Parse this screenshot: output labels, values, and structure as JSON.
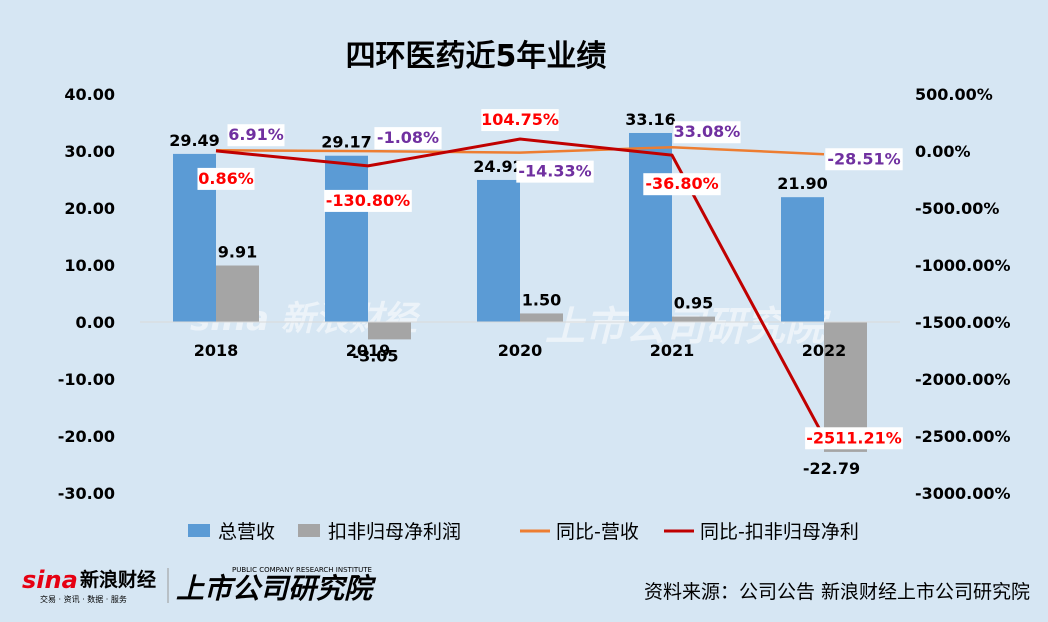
{
  "chart_data": {
    "type": "bar",
    "title": "四环医药近5年业绩",
    "categories": [
      "2018",
      "2019",
      "2020",
      "2021",
      "2022"
    ],
    "series": [
      {
        "name": "总营收",
        "type": "bar",
        "axis": "left",
        "color": "#5b9bd5",
        "values": [
          29.49,
          29.17,
          24.92,
          33.16,
          21.9
        ],
        "labels": [
          "29.49",
          "29.17",
          "24.92",
          "33.16",
          "21.90"
        ]
      },
      {
        "name": "扣非归母净利润",
        "type": "bar",
        "axis": "left",
        "color": "#a5a5a5",
        "values": [
          9.91,
          -3.05,
          1.5,
          0.95,
          -22.79
        ],
        "labels": [
          "9.91",
          "-3.05",
          "1.50",
          "0.95",
          "-22.79"
        ]
      },
      {
        "name": "同比-营收",
        "type": "line",
        "axis": "right",
        "color": "#ed7d31",
        "label_color": "#7030a0",
        "values": [
          6.91,
          -1.08,
          -14.33,
          33.08,
          -28.51
        ],
        "labels": [
          "6.91%",
          "-1.08%",
          "-14.33%",
          "33.08%",
          "-28.51%"
        ]
      },
      {
        "name": "同比-扣非归母净利",
        "type": "line",
        "axis": "right",
        "color": "#c00000",
        "label_color": "#ff0000",
        "values": [
          0.86,
          -130.8,
          104.75,
          -36.8,
          -2511.21
        ],
        "labels": [
          "0.86%",
          "-130.80%",
          "104.75%",
          "-36.80%",
          "-2511.21%"
        ]
      }
    ],
    "ylim": [
      -30,
      40
    ],
    "y_ticks": [
      "40.00",
      "30.00",
      "20.00",
      "10.00",
      "0.00",
      "-10.00",
      "-20.00",
      "-30.00"
    ],
    "y2lim": [
      -3000,
      500
    ],
    "y2_ticks": [
      "500.00%",
      "0.00%",
      "-500.00%",
      "-1000.00%",
      "-1500.00%",
      "-2000.00%",
      "-2500.00%",
      "-3000.00%"
    ],
    "legend_position": "bottom",
    "grid": false
  },
  "source_text": "资料来源：公司公告 新浪财经上市公司研究院",
  "logos": {
    "sina_text": "sina",
    "sina_cn": "新浪财经",
    "sina_sub": "交易 · 资讯 · 数据 · 服务",
    "institute_cn": "上市公司研究院",
    "institute_en": "PUBLIC COMPANY RESEARCH INSTITUTE"
  }
}
